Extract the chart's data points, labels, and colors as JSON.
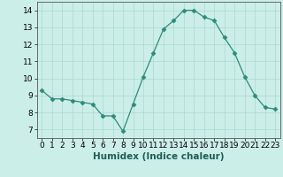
{
  "x": [
    0,
    1,
    2,
    3,
    4,
    5,
    6,
    7,
    8,
    9,
    10,
    11,
    12,
    13,
    14,
    15,
    16,
    17,
    18,
    19,
    20,
    21,
    22,
    23
  ],
  "y": [
    9.3,
    8.8,
    8.8,
    8.7,
    8.6,
    8.5,
    7.8,
    7.8,
    6.9,
    8.5,
    10.1,
    11.5,
    12.9,
    13.4,
    14.0,
    14.0,
    13.6,
    13.4,
    12.4,
    11.5,
    10.1,
    9.0,
    8.3,
    8.2
  ],
  "xlabel": "Humidex (Indice chaleur)",
  "xlim": [
    -0.5,
    23.5
  ],
  "ylim": [
    6.5,
    14.5
  ],
  "yticks": [
    7,
    8,
    9,
    10,
    11,
    12,
    13,
    14
  ],
  "xticks": [
    0,
    1,
    2,
    3,
    4,
    5,
    6,
    7,
    8,
    9,
    10,
    11,
    12,
    13,
    14,
    15,
    16,
    17,
    18,
    19,
    20,
    21,
    22,
    23
  ],
  "line_color": "#2e8b7a",
  "marker": "D",
  "marker_size": 2.5,
  "bg_color": "#cceee8",
  "grid_color": "#aad8d2",
  "xlabel_fontsize": 7.5,
  "tick_fontsize": 6.5
}
